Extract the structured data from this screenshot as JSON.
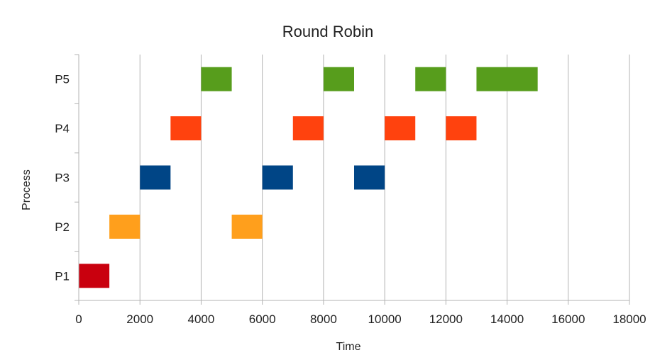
{
  "chart_data": {
    "type": "gantt",
    "title": "Round Robin",
    "xlabel": "Time",
    "ylabel": "Process",
    "xlim": [
      0,
      18000
    ],
    "xticks": [
      "0",
      "2000",
      "4000",
      "6000",
      "8000",
      "10000",
      "12000",
      "14000",
      "16000",
      "18000"
    ],
    "xtick_values": [
      0,
      2000,
      4000,
      6000,
      8000,
      10000,
      12000,
      14000,
      16000,
      18000
    ],
    "categories": [
      "P1",
      "P2",
      "P3",
      "P4",
      "P5"
    ],
    "grid": "vertical",
    "colors": {
      "P1": "#c9000e",
      "P2": "#ff9f1c",
      "P3": "#004586",
      "P4": "#ff420e",
      "P5": "#579d1c"
    },
    "series": [
      {
        "process": "P1",
        "intervals": [
          [
            0,
            1000
          ]
        ]
      },
      {
        "process": "P2",
        "intervals": [
          [
            1000,
            2000
          ],
          [
            5000,
            6000
          ]
        ]
      },
      {
        "process": "P3",
        "intervals": [
          [
            2000,
            3000
          ],
          [
            6000,
            7000
          ],
          [
            9000,
            10000
          ]
        ]
      },
      {
        "process": "P4",
        "intervals": [
          [
            3000,
            4000
          ],
          [
            7000,
            8000
          ],
          [
            10000,
            11000
          ],
          [
            12000,
            13000
          ]
        ]
      },
      {
        "process": "P5",
        "intervals": [
          [
            4000,
            5000
          ],
          [
            8000,
            9000
          ],
          [
            11000,
            12000
          ],
          [
            13000,
            15000
          ]
        ]
      }
    ]
  }
}
